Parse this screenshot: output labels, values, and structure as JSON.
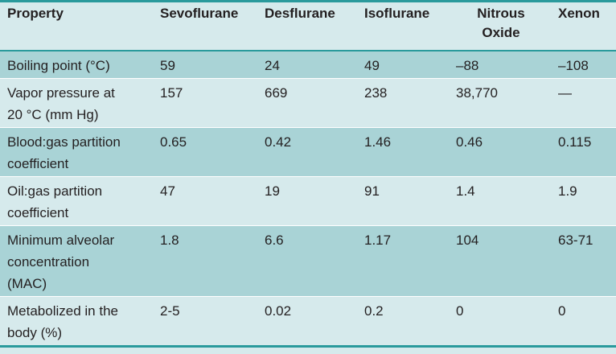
{
  "table": {
    "headers": {
      "property": "Property",
      "sevoflurane": "Sevoflurane",
      "desflurane": "Desflurane",
      "isoflurane": "Isoflurane",
      "nitrous_oxide_line1": "Nitrous",
      "nitrous_oxide_line2": "Oxide",
      "xenon": "Xenon"
    },
    "rows": [
      {
        "property": "Boiling point (°C)",
        "sevoflurane": "59",
        "desflurane": "24",
        "isoflurane": "49",
        "nitrous_oxide": "–88",
        "xenon": "–108"
      },
      {
        "property_line1": "Vapor pressure at",
        "property_line2": "20 °C (mm Hg)",
        "sevoflurane": "157",
        "desflurane": "669",
        "isoflurane": "238",
        "nitrous_oxide": "38,770",
        "xenon": "—"
      },
      {
        "property_line1": "Blood:gas partition",
        "property_line2": "coefficient",
        "sevoflurane": "0.65",
        "desflurane": "0.42",
        "isoflurane": "1.46",
        "nitrous_oxide": "0.46",
        "xenon": "0.115"
      },
      {
        "property_line1": "Oil:gas partition",
        "property_line2": "coefficient",
        "sevoflurane": "47",
        "desflurane": "19",
        "isoflurane": "91",
        "nitrous_oxide": "1.4",
        "xenon": "1.9"
      },
      {
        "property_line1": "Minimum alveolar",
        "property_line2": "concentration",
        "property_line3": "(MAC)",
        "sevoflurane": "1.8",
        "desflurane": "6.6",
        "isoflurane": "1.17",
        "nitrous_oxide": "104",
        "xenon": "63-71"
      },
      {
        "property_line1": "Metabolized in the",
        "property_line2": "body (%)",
        "sevoflurane": "2-5",
        "desflurane": "0.02",
        "isoflurane": "0.2",
        "nitrous_oxide": "0",
        "xenon": "0"
      }
    ]
  },
  "colors": {
    "light_row": "#d6eaec",
    "dark_row": "#a9d3d6",
    "rule": "#2a9a9c",
    "text": "#231f20"
  }
}
